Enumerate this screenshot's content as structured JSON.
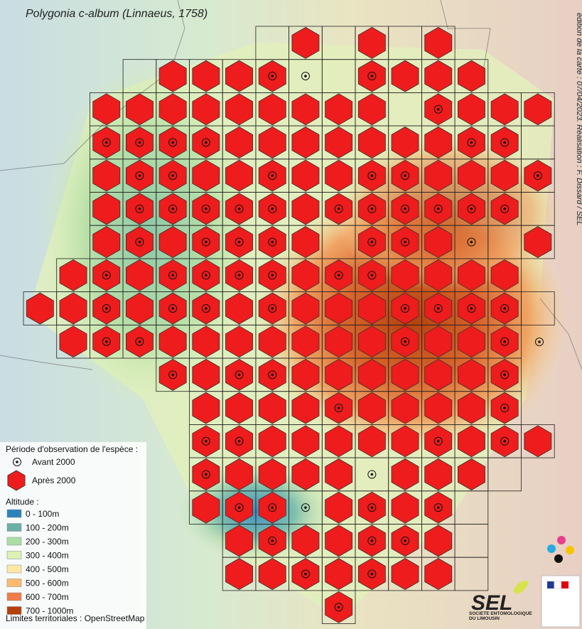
{
  "title": "Polygonia c-album (Linnaeus, 1758)",
  "credit": "édition de la carte : 07/04/2023. Réalisation : F. Dissard / SEL",
  "legend": {
    "period_title": "Période d'observation de l'espèce :",
    "before": "Avant 2000",
    "after": "Après 2000",
    "altitude_title": "Altitude :",
    "altitude_classes": [
      {
        "label": "0 - 100m",
        "color": "#2b83ba"
      },
      {
        "label": "100 - 200m",
        "color": "#6bb0a6"
      },
      {
        "label": "200 - 300m",
        "color": "#abdda4"
      },
      {
        "label": "300 - 400m",
        "color": "#ddf1b4"
      },
      {
        "label": "400 - 500m",
        "color": "#fee8a4"
      },
      {
        "label": "500 - 600m",
        "color": "#fdb96e"
      },
      {
        "label": "600 - 700m",
        "color": "#f17c4a"
      },
      {
        "label": "700 - 1000m",
        "color": "#b5400c"
      }
    ],
    "source": "Limites territoriales : OpenStreetMap"
  },
  "logo": {
    "name": "SEL",
    "subtitle": "SOCIÉTÉ ENTOMOLOGIQUE DU LIMOUSIN"
  }
}
